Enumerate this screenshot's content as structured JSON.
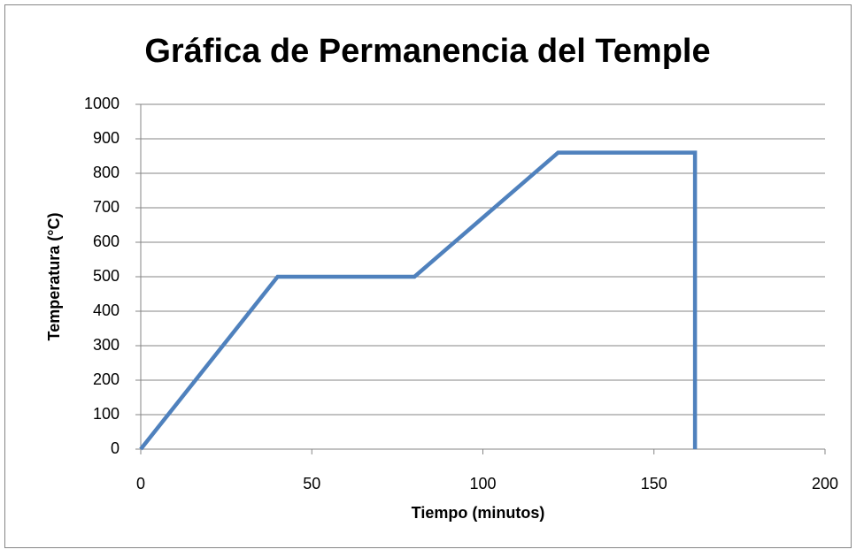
{
  "chart_data": {
    "type": "line",
    "title": "Gráfica de Permanencia del Temple",
    "x_label": "Tiempo (minutos)",
    "y_label": "Temperatura (°C)",
    "x": [
      0,
      40,
      80,
      122,
      162,
      162
    ],
    "series": [
      {
        "name": "Temperatura",
        "color": "#4f81bd",
        "values": [
          0,
          500,
          500,
          860,
          860,
          0
        ]
      }
    ],
    "xlim": [
      0,
      200
    ],
    "xticks": [
      0,
      50,
      100,
      150,
      200
    ],
    "ylim": [
      0,
      1000
    ],
    "yticks": [
      0,
      100,
      200,
      300,
      400,
      500,
      600,
      700,
      800,
      900,
      1000
    ],
    "grid": true,
    "legend": false
  }
}
